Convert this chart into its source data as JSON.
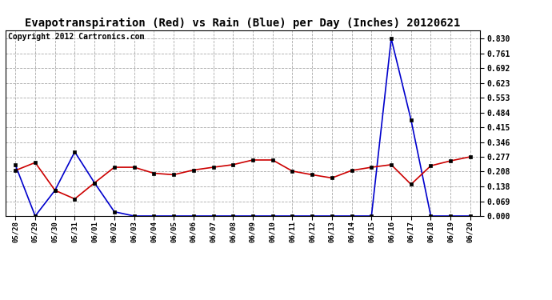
{
  "title": "Evapotranspiration (Red) vs Rain (Blue) per Day (Inches) 20120621",
  "copyright": "Copyright 2012 Cartronics.com",
  "labels": [
    "05/28",
    "05/29",
    "05/30",
    "05/31",
    "06/01",
    "06/02",
    "06/03",
    "06/04",
    "06/05",
    "06/06",
    "06/07",
    "06/08",
    "06/09",
    "06/10",
    "06/11",
    "06/12",
    "06/13",
    "06/14",
    "06/15",
    "06/16",
    "06/17",
    "06/18",
    "06/19",
    "06/20"
  ],
  "red_data": [
    0.213,
    0.25,
    0.12,
    0.08,
    0.155,
    0.228,
    0.228,
    0.2,
    0.193,
    0.215,
    0.228,
    0.24,
    0.262,
    0.262,
    0.21,
    0.193,
    0.178,
    0.213,
    0.228,
    0.24,
    0.148,
    0.235,
    0.258,
    0.277
  ],
  "blue_data": [
    0.238,
    0.0,
    0.12,
    0.3,
    0.155,
    0.02,
    0.0,
    0.0,
    0.0,
    0.0,
    0.0,
    0.0,
    0.0,
    0.0,
    0.0,
    0.0,
    0.0,
    0.0,
    0.0,
    0.83,
    0.45,
    0.0,
    0.0,
    0.0
  ],
  "yticks": [
    0.0,
    0.069,
    0.138,
    0.208,
    0.277,
    0.346,
    0.415,
    0.484,
    0.553,
    0.623,
    0.692,
    0.761,
    0.83
  ],
  "ylim": [
    0.0,
    0.87
  ],
  "red_color": "#cc0000",
  "blue_color": "#0000cc",
  "bg_color": "#ffffff",
  "grid_color": "#aaaaaa",
  "title_fontsize": 10,
  "copyright_fontsize": 7,
  "figwidth": 6.9,
  "figheight": 3.75,
  "dpi": 100
}
